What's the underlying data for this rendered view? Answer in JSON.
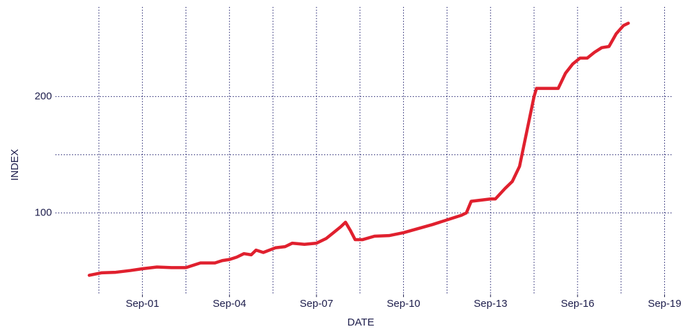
{
  "chart_data": {
    "type": "line",
    "x_label": "DATE",
    "y_label": "INDEX",
    "x": [
      "Nov-99",
      "Apr-00",
      "Oct-00",
      "Apr-01",
      "Sep-01",
      "Mar-02",
      "Sep-02",
      "Mar-03",
      "Sep-03",
      "Mar-04",
      "Jun-04",
      "Sep-04",
      "Dec-04",
      "Mar-05",
      "Jun-05",
      "Aug-05",
      "Nov-05",
      "Apr-06",
      "Aug-06",
      "Nov-06",
      "Apr-07",
      "Sep-07",
      "Jan-08",
      "Apr-08",
      "Jul-08",
      "Sep-08",
      "Nov-08",
      "Jan-09",
      "Apr-09",
      "Sep-09",
      "Mar-10",
      "Sep-10",
      "Sep-11",
      "Sep-12",
      "Nov-12",
      "Jan-13",
      "Sep-13",
      "Nov-13",
      "Mar-14",
      "Jun-14",
      "Sep-14",
      "Nov-14",
      "Mar-15",
      "Apr-15",
      "Jan-16",
      "Apr-16",
      "Jul-16",
      "Oct-16",
      "Jan-17",
      "Apr-17",
      "Jul-17",
      "Oct-17",
      "Jan-18",
      "Apr-18",
      "Jun-18"
    ],
    "series": [
      {
        "color": "#e0202e",
        "values": [
          46.4,
          48.5,
          49,
          50.5,
          52,
          53.5,
          53,
          53,
          57,
          57,
          59,
          60,
          62,
          65,
          64,
          68,
          66,
          70,
          71,
          74,
          73,
          74,
          78,
          83,
          88,
          92,
          85,
          77,
          77,
          80,
          80.5,
          83,
          90,
          98,
          100,
          110,
          112,
          112,
          121,
          127,
          140,
          160,
          200,
          207,
          207,
          220,
          228,
          233,
          233,
          238,
          242,
          243,
          254,
          261,
          263
        ]
      }
    ],
    "xlim": [
      "Sep-98",
      "Dec-19"
    ],
    "xticks": [
      "Sep-01",
      "Sep-04",
      "Sep-07",
      "Sep-10",
      "Sep-13",
      "Sep-16",
      "Sep-19"
    ],
    "xminor": [
      "Mar-00",
      "Mar-03",
      "Mar-06",
      "Mar-09",
      "Mar-12",
      "Mar-15",
      "Mar-18"
    ],
    "ylim": [
      30,
      277
    ],
    "yticks": [
      100,
      200
    ],
    "yminor": [
      150
    ],
    "grid": true
  }
}
